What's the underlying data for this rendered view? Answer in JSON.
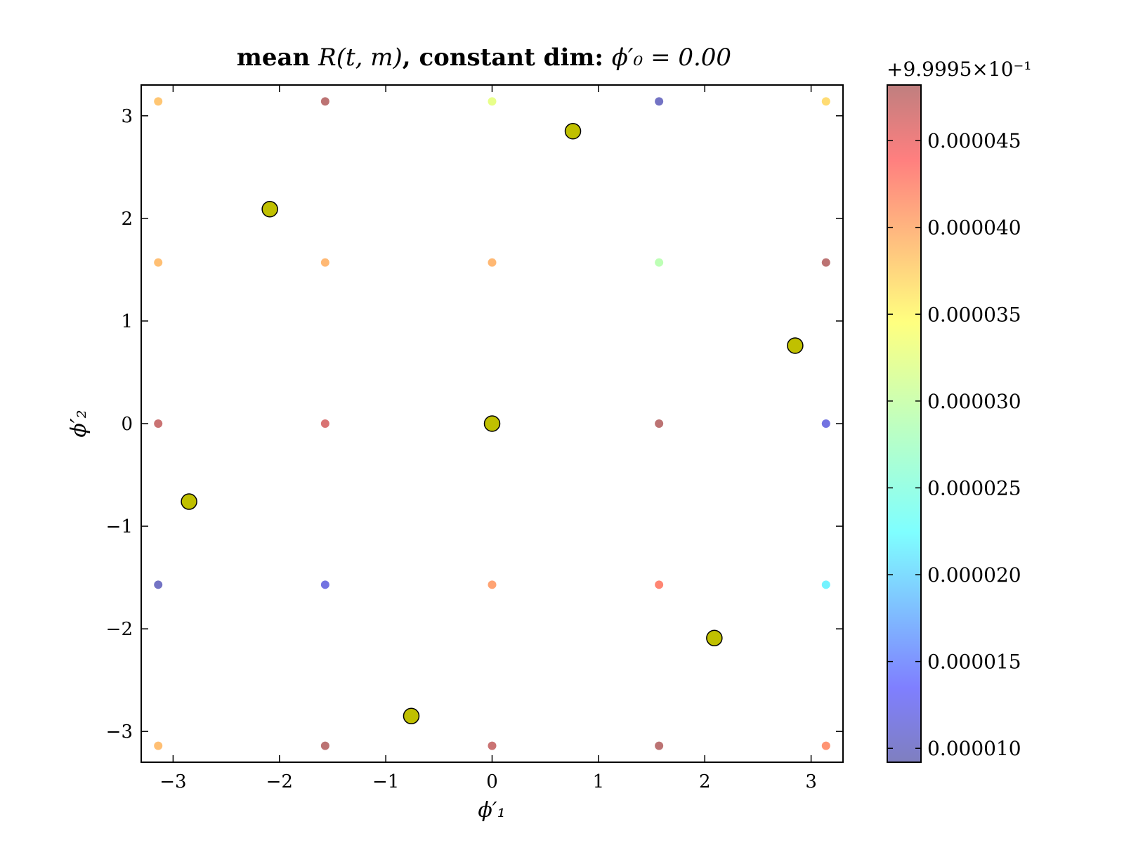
{
  "chart_data": {
    "type": "scatter",
    "title": "mean R(t,m), constant dim: ϕ′₀ = 0.00",
    "title_parts": {
      "bold": "mean ",
      "func": "R(t, m)",
      "bold2": ", constant dim: ",
      "eq": "ϕ′₀ = 0.00"
    },
    "xlabel": "ϕ′₁",
    "ylabel": "ϕ′₂",
    "xlim": [
      -3.3,
      3.3
    ],
    "ylim": [
      -3.3,
      3.3
    ],
    "xticks": [
      -3,
      -2,
      -1,
      0,
      1,
      2,
      3
    ],
    "xtick_labels": [
      "−3",
      "−2",
      "−1",
      "0",
      "1",
      "2",
      "3"
    ],
    "yticks": [
      -3,
      -2,
      -1,
      0,
      1,
      2,
      3
    ],
    "ytick_labels": [
      "−3",
      "−2",
      "−1",
      "0",
      "1",
      "2",
      "3"
    ],
    "grid": false,
    "colorbar": {
      "offset_label": "+9.9995×10⁻¹",
      "vmin": 9.2e-06,
      "vmax": 4.82e-05,
      "ticks": [
        1e-05,
        1.5e-05,
        2e-05,
        2.5e-05,
        3e-05,
        3.5e-05,
        4e-05,
        4.5e-05
      ],
      "tick_labels": [
        "0.000010",
        "0.000015",
        "0.000020",
        "0.000025",
        "0.000030",
        "0.000035",
        "0.000040",
        "0.000045"
      ],
      "colormap": "jet",
      "alpha": 0.5
    },
    "small_points": [
      {
        "x": -3.14,
        "y": 3.14,
        "v": 3.75e-05
      },
      {
        "x": -1.57,
        "y": 3.14,
        "v": 4.8e-05
      },
      {
        "x": 0.0,
        "y": 3.14,
        "v": 3.2e-05
      },
      {
        "x": 1.57,
        "y": 3.14,
        "v": 1e-05
      },
      {
        "x": 3.14,
        "y": 3.14,
        "v": 3.6e-05
      },
      {
        "x": -3.14,
        "y": 1.57,
        "v": 3.8e-05
      },
      {
        "x": -1.57,
        "y": 1.57,
        "v": 3.85e-05
      },
      {
        "x": 0.0,
        "y": 1.57,
        "v": 3.85e-05
      },
      {
        "x": 1.57,
        "y": 1.57,
        "v": 2.9e-05
      },
      {
        "x": 3.14,
        "y": 1.57,
        "v": 4.8e-05
      },
      {
        "x": -3.14,
        "y": 0.0,
        "v": 4.7e-05
      },
      {
        "x": -1.57,
        "y": 0.0,
        "v": 4.6e-05
      },
      {
        "x": 0.0,
        "y": 0.0,
        "v": 4.6e-05
      },
      {
        "x": 1.57,
        "y": 0.0,
        "v": 4.8e-05
      },
      {
        "x": 3.14,
        "y": 0.0,
        "v": 1.2e-05
      },
      {
        "x": -3.14,
        "y": -1.57,
        "v": 1e-05
      },
      {
        "x": -1.57,
        "y": -1.57,
        "v": 1.2e-05
      },
      {
        "x": 0.0,
        "y": -1.57,
        "v": 4e-05
      },
      {
        "x": 1.57,
        "y": -1.57,
        "v": 4.2e-05
      },
      {
        "x": 3.14,
        "y": -1.57,
        "v": 2.3e-05
      },
      {
        "x": -3.14,
        "y": -3.14,
        "v": 3.8e-05
      },
      {
        "x": -1.57,
        "y": -3.14,
        "v": 4.8e-05
      },
      {
        "x": 0.0,
        "y": -3.14,
        "v": 4.7e-05
      },
      {
        "x": 1.57,
        "y": -3.14,
        "v": 4.8e-05
      },
      {
        "x": 3.14,
        "y": -3.14,
        "v": 4.1e-05
      }
    ],
    "large_points": {
      "color": "#c0c000",
      "points": [
        {
          "x": 0.76,
          "y": 2.85
        },
        {
          "x": -2.09,
          "y": 2.09
        },
        {
          "x": 2.85,
          "y": 0.76
        },
        {
          "x": 0.0,
          "y": 0.0
        },
        {
          "x": -2.85,
          "y": -0.76
        },
        {
          "x": 2.09,
          "y": -2.09
        },
        {
          "x": -0.76,
          "y": -2.85
        }
      ]
    }
  }
}
